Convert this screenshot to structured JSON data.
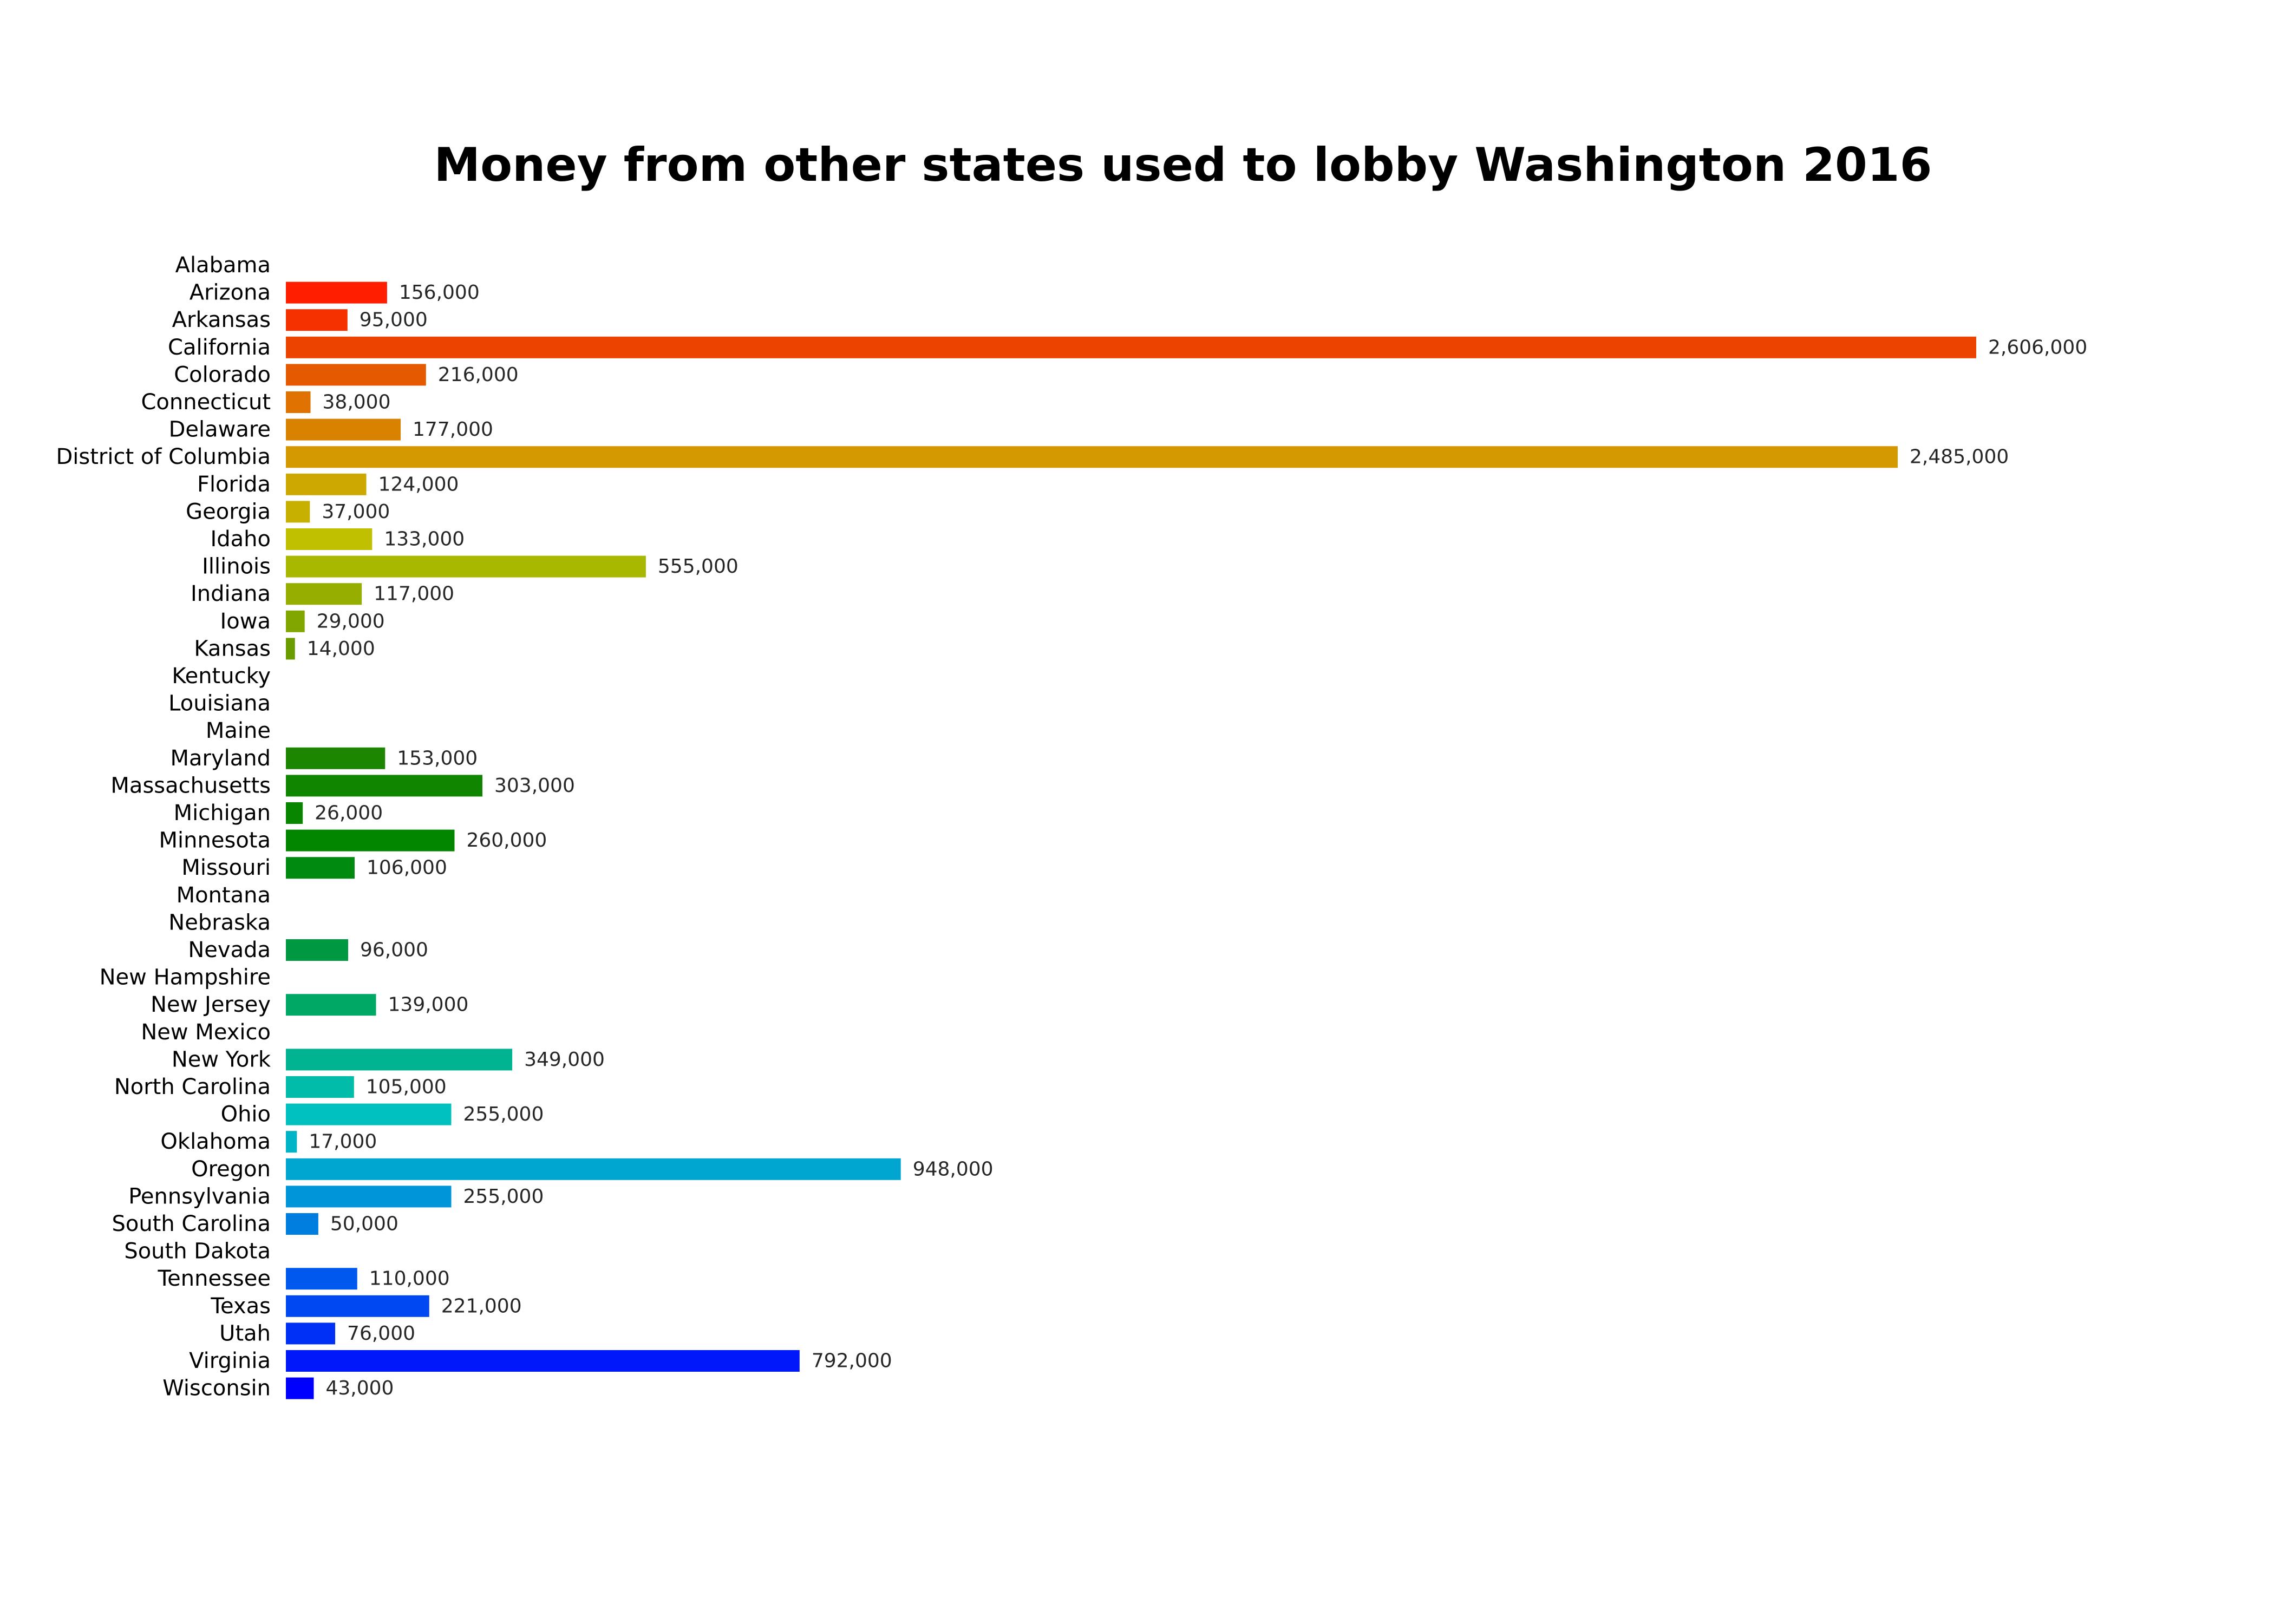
{
  "chart_data": {
    "type": "bar",
    "orientation": "horizontal",
    "title": "Money from other states used to lobby Washington 2016",
    "xlabel": "",
    "ylabel": "",
    "grid": false,
    "axes_visible": false,
    "value_label_format": "thousands-comma",
    "categories": [
      "Alabama",
      "Arizona",
      "Arkansas",
      "California",
      "Colorado",
      "Connecticut",
      "Delaware",
      "District of Columbia",
      "Florida",
      "Georgia",
      "Idaho",
      "Illinois",
      "Indiana",
      "Iowa",
      "Kansas",
      "Kentucky",
      "Louisiana",
      "Maine",
      "Maryland",
      "Massachusetts",
      "Michigan",
      "Minnesota",
      "Missouri",
      "Montana",
      "Nebraska",
      "Nevada",
      "New Hampshire",
      "New Jersey",
      "New Mexico",
      "New York",
      "North Carolina",
      "Ohio",
      "Oklahoma",
      "Oregon",
      "Pennsylvania",
      "South Carolina",
      "South Dakota",
      "Tennessee",
      "Texas",
      "Utah",
      "Virginia",
      "Wisconsin"
    ],
    "values": [
      0,
      156000,
      95000,
      2606000,
      216000,
      38000,
      177000,
      2485000,
      124000,
      37000,
      133000,
      555000,
      117000,
      29000,
      14000,
      0,
      0,
      0,
      153000,
      303000,
      26000,
      260000,
      106000,
      0,
      0,
      96000,
      0,
      139000,
      0,
      349000,
      105000,
      255000,
      17000,
      948000,
      255000,
      50000,
      0,
      110000,
      221000,
      76000,
      792000,
      43000
    ],
    "colors": [
      "#ff0000",
      "#ff1f00",
      "#f53100",
      "#ec4400",
      "#e55a00",
      "#df7200",
      "#d98200",
      "#d49800",
      "#cda800",
      "#c7b000",
      "#c0c000",
      "#a8b800",
      "#96ae00",
      "#82a600",
      "#6a9c00",
      "#4f9200",
      "#3a8a00",
      "#2a8600",
      "#1c8600",
      "#108600",
      "#088600",
      "#028600",
      "#008a10",
      "#008e20",
      "#009430",
      "#009840",
      "#00a050",
      "#00a866",
      "#00b080",
      "#00b492",
      "#00bca8",
      "#00c0c0",
      "#00b4c8",
      "#00a6d0",
      "#0094d8",
      "#007ee0",
      "#0068e8",
      "#0058ee",
      "#0048f2",
      "#0030f6",
      "#0018fa",
      "#0000ff"
    ]
  }
}
